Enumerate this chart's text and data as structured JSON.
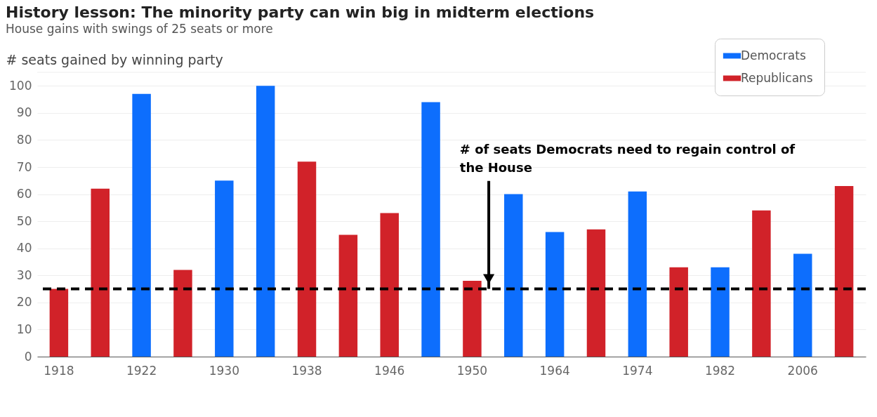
{
  "chart_data": {
    "type": "bar",
    "title": "History lesson: The minority party can win big in midterm elections",
    "subtitle": "House gains with swings of 25 seats or more",
    "ylabel": "# seats gained by winning party",
    "categories": [
      "1918",
      null,
      "1922",
      null,
      "1930",
      null,
      "1938",
      null,
      "1946",
      null,
      "1950",
      null,
      "1964",
      null,
      "1974",
      null,
      "1982",
      null,
      "2006",
      null
    ],
    "series": [
      {
        "name": "Democrats",
        "color": "#0d6efd",
        "values": [
          null,
          null,
          97,
          null,
          65,
          100,
          null,
          null,
          null,
          94,
          null,
          60,
          46,
          null,
          61,
          null,
          33,
          null,
          38,
          null
        ]
      },
      {
        "name": "Republicans",
        "color": "#d12229",
        "values": [
          25,
          62,
          null,
          32,
          null,
          null,
          72,
          45,
          53,
          null,
          28,
          null,
          null,
          47,
          null,
          33,
          null,
          54,
          null,
          63
        ]
      }
    ],
    "ylim": [
      0,
      105
    ],
    "yticks": [
      0,
      10,
      20,
      30,
      40,
      50,
      60,
      70,
      80,
      90,
      100
    ],
    "grid": "y",
    "legend": "top right",
    "ref_lines": [
      {
        "axis": "y",
        "value": 25,
        "label": "# of seats Democrats need to regain control of the House",
        "color": "#000000",
        "line_style": "dashed"
      }
    ]
  }
}
